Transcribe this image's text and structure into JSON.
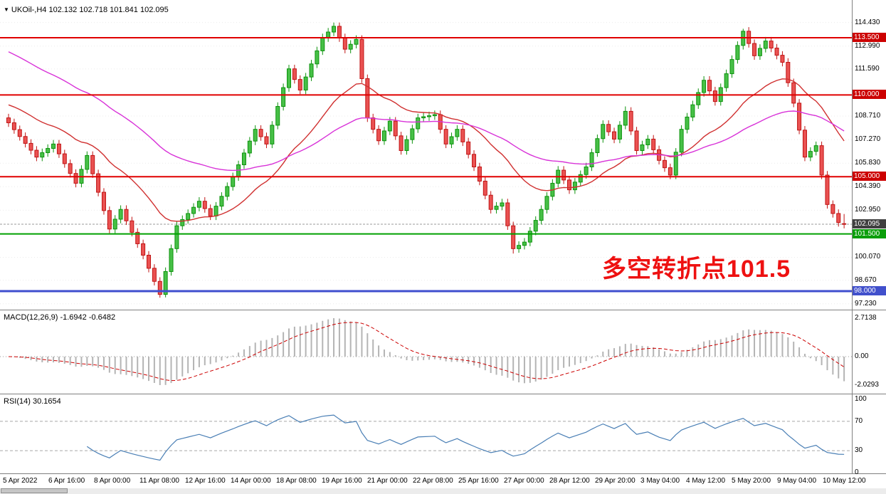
{
  "colors": {
    "up_fill": "#47c047",
    "up_border": "#0d930d",
    "down_fill": "#ea5252",
    "down_border": "#c01414",
    "ma_fast": "#d03030",
    "ma_slow": "#d832d8",
    "macd_hist": "#b4b4b4",
    "macd_signal": "#cc0000",
    "rsi_line": "#4a7fb5",
    "grid": "#ebebeb",
    "current_price_line": "#9a9a9a"
  },
  "price_axis": {
    "labels": [
      {
        "text": "114.430",
        "price": 114.43
      },
      {
        "text": "112.990",
        "price": 112.99
      },
      {
        "text": "111.590",
        "price": 111.59
      },
      {
        "text": "108.710",
        "price": 108.71
      },
      {
        "text": "107.270",
        "price": 107.27
      },
      {
        "text": "105.830",
        "price": 105.83
      },
      {
        "text": "104.390",
        "price": 104.39
      },
      {
        "text": "102.950",
        "price": 102.95
      },
      {
        "text": "100.070",
        "price": 100.07
      },
      {
        "text": "98.670",
        "price": 98.67
      },
      {
        "text": "97.230",
        "price": 97.23
      }
    ],
    "chips": [
      {
        "text": "113.500",
        "price": 113.5,
        "bg": "#cc0000"
      },
      {
        "text": "110.000",
        "price": 110.0,
        "bg": "#cc0000"
      },
      {
        "text": "105.000",
        "price": 105.0,
        "bg": "#cc0000"
      },
      {
        "text": "102.095",
        "price": 102.095,
        "bg": "#3f3f3f"
      },
      {
        "text": "101.500",
        "price": 101.5,
        "bg": "#0a9e0a"
      },
      {
        "text": "98.000",
        "price": 98.0,
        "bg": "#4150cc"
      }
    ]
  },
  "chart_data": [
    {
      "type": "candlestick",
      "header": {
        "symbol": "UKOil-,H4",
        "ohlc_text": "102.132 102.718 101.841 102.095"
      },
      "ohlc_current": {
        "open": 102.132,
        "high": 102.718,
        "low": 101.841,
        "close": 102.095
      },
      "y_visible_range": [
        97.0,
        115.2
      ],
      "annotation": {
        "text": "多空转折点101.5",
        "color": "#ee1111"
      },
      "levels": [
        {
          "price": 113.5,
          "color": "#e00000",
          "width": 2
        },
        {
          "price": 110.0,
          "color": "#e00000",
          "width": 2
        },
        {
          "price": 105.0,
          "color": "#e00000",
          "width": 2
        },
        {
          "price": 101.5,
          "color": "#00a000",
          "width": 2
        },
        {
          "price": 98.0,
          "color": "#3f4ecf",
          "width": 3
        }
      ],
      "current_price": 102.095,
      "overlays": [
        {
          "name": "ma-fast",
          "type": "ema",
          "period": 22,
          "seed": 109.5,
          "color": "#d03030"
        },
        {
          "name": "ma-slow",
          "type": "ema",
          "period": 56,
          "seed": 112.8,
          "color": "#d832d8"
        }
      ],
      "x_labels": [
        "5 Apr 2022",
        "6 Apr 16:00",
        "8 Apr 00:00",
        "11 Apr 08:00",
        "12 Apr 16:00",
        "14 Apr 00:00",
        "18 Apr 08:00",
        "19 Apr 16:00",
        "21 Apr 00:00",
        "22 Apr 08:00",
        "25 Apr 16:00",
        "27 Apr 00:00",
        "28 Apr 12:00",
        "29 Apr 20:00",
        "3 May 04:00",
        "4 May 12:00",
        "5 May 20:00",
        "9 May 04:00",
        "10 May 12:00"
      ],
      "candles": [
        [
          108.6,
          108.85,
          108.05,
          108.3
        ],
        [
          108.3,
          108.55,
          107.63,
          107.88
        ],
        [
          107.88,
          108.13,
          107.21,
          107.46
        ],
        [
          107.46,
          107.71,
          106.79,
          107.04
        ],
        [
          107.04,
          107.29,
          106.37,
          106.62
        ],
        [
          106.62,
          106.87,
          105.95,
          106.2
        ],
        [
          106.2,
          106.72,
          105.95,
          106.47
        ],
        [
          106.47,
          106.98,
          106.22,
          106.73
        ],
        [
          106.73,
          107.25,
          106.48,
          107.0
        ],
        [
          107.0,
          107.25,
          106.15,
          106.4
        ],
        [
          106.4,
          106.65,
          105.55,
          105.8
        ],
        [
          105.8,
          106.05,
          104.95,
          105.2
        ],
        [
          105.2,
          105.45,
          104.35,
          104.6
        ],
        [
          104.6,
          105.7,
          104.35,
          105.45
        ],
        [
          105.45,
          106.55,
          105.2,
          106.3
        ],
        [
          106.3,
          106.55,
          104.93,
          105.18
        ],
        [
          105.18,
          105.43,
          103.8,
          104.05
        ],
        [
          104.05,
          104.3,
          102.68,
          102.93
        ],
        [
          102.93,
          103.18,
          101.55,
          101.8
        ],
        [
          101.8,
          102.65,
          101.55,
          102.4
        ],
        [
          102.4,
          103.25,
          102.15,
          103.0
        ],
        [
          103.0,
          103.25,
          102.05,
          102.3
        ],
        [
          102.3,
          102.55,
          101.35,
          101.6
        ],
        [
          101.6,
          101.85,
          100.65,
          100.9
        ],
        [
          100.9,
          101.15,
          99.95,
          100.2
        ],
        [
          100.2,
          100.45,
          99.15,
          99.4
        ],
        [
          99.4,
          99.65,
          98.35,
          98.6
        ],
        [
          98.6,
          98.85,
          97.6,
          97.8
        ],
        [
          97.8,
          99.45,
          97.62,
          99.2
        ],
        [
          99.2,
          100.85,
          98.95,
          100.6
        ],
        [
          100.6,
          102.25,
          100.35,
          102.0
        ],
        [
          102.0,
          102.63,
          101.75,
          102.38
        ],
        [
          102.38,
          103.0,
          102.13,
          102.75
        ],
        [
          102.75,
          103.38,
          102.5,
          103.13
        ],
        [
          103.13,
          103.75,
          102.88,
          103.5
        ],
        [
          103.5,
          103.75,
          102.8,
          103.05
        ],
        [
          103.05,
          103.3,
          102.35,
          102.6
        ],
        [
          102.6,
          103.45,
          102.35,
          103.2
        ],
        [
          103.2,
          104.05,
          102.95,
          103.8
        ],
        [
          103.8,
          104.65,
          103.55,
          104.4
        ],
        [
          104.4,
          105.25,
          104.15,
          105.0
        ],
        [
          105.0,
          105.98,
          104.75,
          105.73
        ],
        [
          105.73,
          106.7,
          105.48,
          106.45
        ],
        [
          106.45,
          107.43,
          106.2,
          107.18
        ],
        [
          107.18,
          108.15,
          106.93,
          107.9
        ],
        [
          107.9,
          108.15,
          107.2,
          107.45
        ],
        [
          107.45,
          107.7,
          106.75,
          107.0
        ],
        [
          107.0,
          108.4,
          106.75,
          108.15
        ],
        [
          108.15,
          109.55,
          107.9,
          109.3
        ],
        [
          109.3,
          110.7,
          109.05,
          110.45
        ],
        [
          110.45,
          111.85,
          110.2,
          111.6
        ],
        [
          111.6,
          111.85,
          110.7,
          110.95
        ],
        [
          110.95,
          111.2,
          110.05,
          110.3
        ],
        [
          110.3,
          111.35,
          110.05,
          111.1
        ],
        [
          111.1,
          112.15,
          110.85,
          111.9
        ],
        [
          111.9,
          112.95,
          111.65,
          112.7
        ],
        [
          112.7,
          113.75,
          112.45,
          113.5
        ],
        [
          113.5,
          114.1,
          113.25,
          113.85
        ],
        [
          113.85,
          114.43,
          113.6,
          114.2
        ],
        [
          114.2,
          114.43,
          113.25,
          113.5
        ],
        [
          113.5,
          113.75,
          112.55,
          112.8
        ],
        [
          112.8,
          113.35,
          112.55,
          113.1
        ],
        [
          113.1,
          113.65,
          112.85,
          113.4
        ],
        [
          113.4,
          113.65,
          110.75,
          111.0
        ],
        [
          111.0,
          111.25,
          108.35,
          108.6
        ],
        [
          108.6,
          108.85,
          107.65,
          107.9
        ],
        [
          107.9,
          108.15,
          106.95,
          107.2
        ],
        [
          107.2,
          108.05,
          106.95,
          107.8
        ],
        [
          107.8,
          108.65,
          107.55,
          108.4
        ],
        [
          108.4,
          108.65,
          107.25,
          107.5
        ],
        [
          107.5,
          107.75,
          106.35,
          106.6
        ],
        [
          106.6,
          107.52,
          106.35,
          107.27
        ],
        [
          107.27,
          108.18,
          107.02,
          107.93
        ],
        [
          107.93,
          108.85,
          107.68,
          108.6
        ],
        [
          108.6,
          108.92,
          108.35,
          108.67
        ],
        [
          108.67,
          108.98,
          108.42,
          108.73
        ],
        [
          108.73,
          109.05,
          108.48,
          108.8
        ],
        [
          108.8,
          109.05,
          107.65,
          107.9
        ],
        [
          107.9,
          108.15,
          106.75,
          107.0
        ],
        [
          107.0,
          107.7,
          106.75,
          107.45
        ],
        [
          107.45,
          108.15,
          107.2,
          107.9
        ],
        [
          107.9,
          108.15,
          106.88,
          107.13
        ],
        [
          107.13,
          107.38,
          106.12,
          106.37
        ],
        [
          106.37,
          106.62,
          105.35,
          105.6
        ],
        [
          105.6,
          105.85,
          104.48,
          104.73
        ],
        [
          104.73,
          104.98,
          103.62,
          103.87
        ],
        [
          103.87,
          104.12,
          102.75,
          103.0
        ],
        [
          103.0,
          103.45,
          102.75,
          103.2
        ],
        [
          103.2,
          103.65,
          102.95,
          103.4
        ],
        [
          103.4,
          103.65,
          101.75,
          102.0
        ],
        [
          102.0,
          102.25,
          100.3,
          100.6
        ],
        [
          100.6,
          101.05,
          100.35,
          100.8
        ],
        [
          100.8,
          101.25,
          100.55,
          101.0
        ],
        [
          101.0,
          101.92,
          100.75,
          101.67
        ],
        [
          101.67,
          102.58,
          101.42,
          102.33
        ],
        [
          102.33,
          103.25,
          102.08,
          103.0
        ],
        [
          103.0,
          104.05,
          102.75,
          103.8
        ],
        [
          103.8,
          104.85,
          103.55,
          104.6
        ],
        [
          104.6,
          105.65,
          104.35,
          105.4
        ],
        [
          105.4,
          105.65,
          104.55,
          104.8
        ],
        [
          104.8,
          105.05,
          103.95,
          104.2
        ],
        [
          104.2,
          104.92,
          103.95,
          104.67
        ],
        [
          104.67,
          105.38,
          104.42,
          105.13
        ],
        [
          105.13,
          105.85,
          104.88,
          105.6
        ],
        [
          105.6,
          106.72,
          105.35,
          106.47
        ],
        [
          106.47,
          107.58,
          106.22,
          107.33
        ],
        [
          107.33,
          108.45,
          107.08,
          108.2
        ],
        [
          108.2,
          108.45,
          107.5,
          107.75
        ],
        [
          107.75,
          108.0,
          107.05,
          107.3
        ],
        [
          107.3,
          108.4,
          107.05,
          108.15
        ],
        [
          108.15,
          109.3,
          107.9,
          109.0
        ],
        [
          109.0,
          109.25,
          107.55,
          107.8
        ],
        [
          107.8,
          108.05,
          106.35,
          106.6
        ],
        [
          106.6,
          107.2,
          106.35,
          106.95
        ],
        [
          106.95,
          107.55,
          106.7,
          107.3
        ],
        [
          107.3,
          107.55,
          106.4,
          106.65
        ],
        [
          106.65,
          106.9,
          105.75,
          106.0
        ],
        [
          106.0,
          106.25,
          105.3,
          105.55
        ],
        [
          105.55,
          105.8,
          104.85,
          105.1
        ],
        [
          105.1,
          106.75,
          104.85,
          106.5
        ],
        [
          106.5,
          108.15,
          106.25,
          107.9
        ],
        [
          107.9,
          108.9,
          107.65,
          108.65
        ],
        [
          108.65,
          109.65,
          108.4,
          109.4
        ],
        [
          109.4,
          110.4,
          109.15,
          110.15
        ],
        [
          110.15,
          111.15,
          109.9,
          110.9
        ],
        [
          110.9,
          111.15,
          110.0,
          110.25
        ],
        [
          110.25,
          110.5,
          109.35,
          109.6
        ],
        [
          109.6,
          110.7,
          109.35,
          110.45
        ],
        [
          110.45,
          111.55,
          110.2,
          111.3
        ],
        [
          111.3,
          112.42,
          111.05,
          112.17
        ],
        [
          112.17,
          113.28,
          111.92,
          113.03
        ],
        [
          113.03,
          114.05,
          112.78,
          113.9
        ],
        [
          113.9,
          114.15,
          112.9,
          113.15
        ],
        [
          113.15,
          113.4,
          112.15,
          112.4
        ],
        [
          112.4,
          113.1,
          112.15,
          112.85
        ],
        [
          112.85,
          113.55,
          112.6,
          113.3
        ],
        [
          113.3,
          113.55,
          112.62,
          112.87
        ],
        [
          112.87,
          113.12,
          112.18,
          112.43
        ],
        [
          112.43,
          112.68,
          111.75,
          112.0
        ],
        [
          112.0,
          112.25,
          110.5,
          110.75
        ],
        [
          110.75,
          111.0,
          109.25,
          109.5
        ],
        [
          109.5,
          109.75,
          107.6,
          107.85
        ],
        [
          107.85,
          108.1,
          105.95,
          106.2
        ],
        [
          106.2,
          106.8,
          105.95,
          106.55
        ],
        [
          106.55,
          107.15,
          106.3,
          106.9
        ],
        [
          106.9,
          107.15,
          104.85,
          105.1
        ],
        [
          105.1,
          105.35,
          103.05,
          103.3
        ],
        [
          103.3,
          103.55,
          102.5,
          102.75
        ],
        [
          102.75,
          103.0,
          101.95,
          102.2
        ],
        [
          102.13,
          102.72,
          101.84,
          102.1
        ]
      ]
    },
    {
      "type": "bar+line",
      "name": "MACD",
      "label": "MACD(12,26,9) -1.6942 -0.6482",
      "params": [
        12,
        26,
        9
      ],
      "current": {
        "macd": -1.6942,
        "signal": -0.6482
      },
      "axis_values": [
        "2.7138",
        "0.00",
        "-2.0293"
      ],
      "y_max": 2.7138,
      "y_min": -2.0293,
      "derived_from": "chart_data[0].candles closes"
    },
    {
      "type": "line",
      "name": "RSI",
      "label": "RSI(14) 30.1654",
      "period": 14,
      "current": 30.1654,
      "axis_values": [
        "100",
        "70",
        "30",
        "0"
      ],
      "levels": [
        70,
        30
      ],
      "range": [
        0,
        100
      ],
      "derived_from": "chart_data[0].candles closes"
    }
  ]
}
